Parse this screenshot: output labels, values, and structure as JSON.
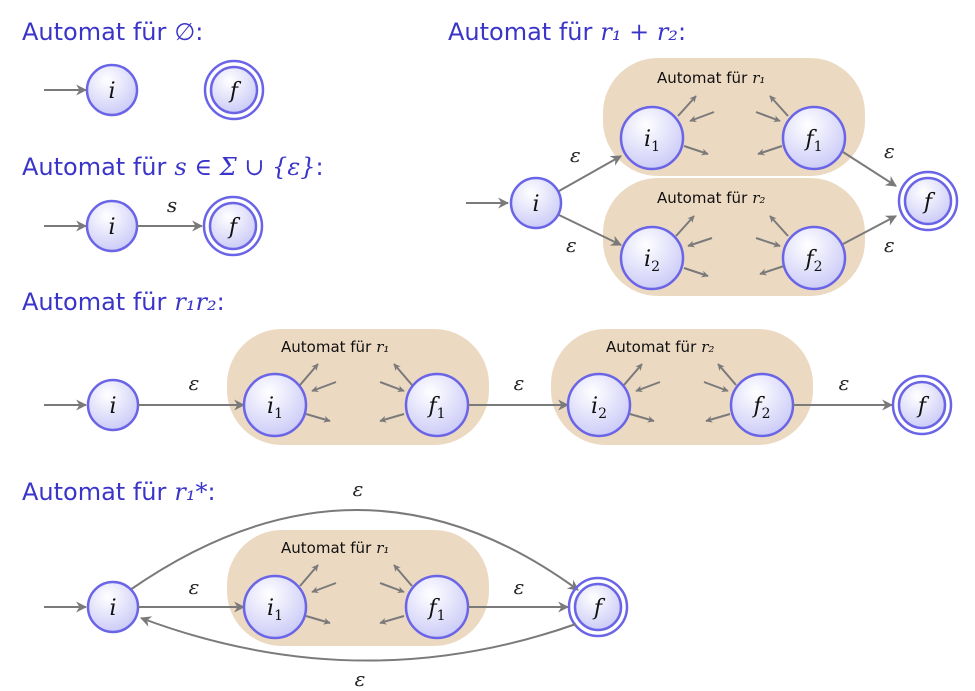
{
  "panels": {
    "empty": {
      "heading": "Automat für",
      "heading_math": "∅",
      "heading_colon": ":",
      "start_state": "i",
      "final_state": "f"
    },
    "symbol": {
      "heading": "Automat für",
      "heading_math": "s ∈ Σ ∪ {ε}",
      "heading_colon": ":",
      "start_state": "i",
      "final_state": "f",
      "edge_label": "s"
    },
    "union": {
      "heading": "Automat für",
      "heading_math": "r₁ + r₂",
      "heading_colon": ":",
      "start_state": "i",
      "final_state": "f",
      "box1_title": "Automat für",
      "box1_math": "r₁",
      "box2_title": "Automat für",
      "box2_math": "r₂",
      "box1_initial": "i",
      "box1_initial_sub": "1",
      "box1_final": "f",
      "box1_final_sub": "1",
      "box2_initial": "i",
      "box2_initial_sub": "2",
      "box2_final": "f",
      "box2_final_sub": "2",
      "eps_top_left": "ε",
      "eps_bottom_left": "ε",
      "eps_top_right": "ε",
      "eps_bottom_right": "ε"
    },
    "concat": {
      "heading": "Automat für",
      "heading_math": "r₁r₂",
      "heading_colon": ":",
      "start_state": "i",
      "final_state": "f",
      "box1_title": "Automat für",
      "box1_math": "r₁",
      "box2_title": "Automat für",
      "box2_math": "r₂",
      "box1_initial": "i",
      "box1_initial_sub": "1",
      "box1_final": "f",
      "box1_final_sub": "1",
      "box2_initial": "i",
      "box2_initial_sub": "2",
      "box2_final": "f",
      "box2_final_sub": "2",
      "eps_1": "ε",
      "eps_2": "ε",
      "eps_3": "ε"
    },
    "star": {
      "heading": "Automat für",
      "heading_math": "r₁*",
      "heading_colon": ":",
      "start_state": "i",
      "final_state": "f",
      "box_title": "Automat für",
      "box_math": "r₁",
      "box_initial": "i",
      "box_initial_sub": "1",
      "box_final": "f",
      "box_final_sub": "1",
      "eps_top": "ε",
      "eps_in": "ε",
      "eps_out": "ε",
      "eps_bottom": "ε"
    }
  },
  "colors": {
    "heading": "#3a35c8",
    "state_border": "#6a64e6",
    "state_fill_top": "#ffffff",
    "state_fill_bottom": "#c9c8f7",
    "box_fill": "#ecd9c2",
    "edge": "#7a7a7a"
  }
}
